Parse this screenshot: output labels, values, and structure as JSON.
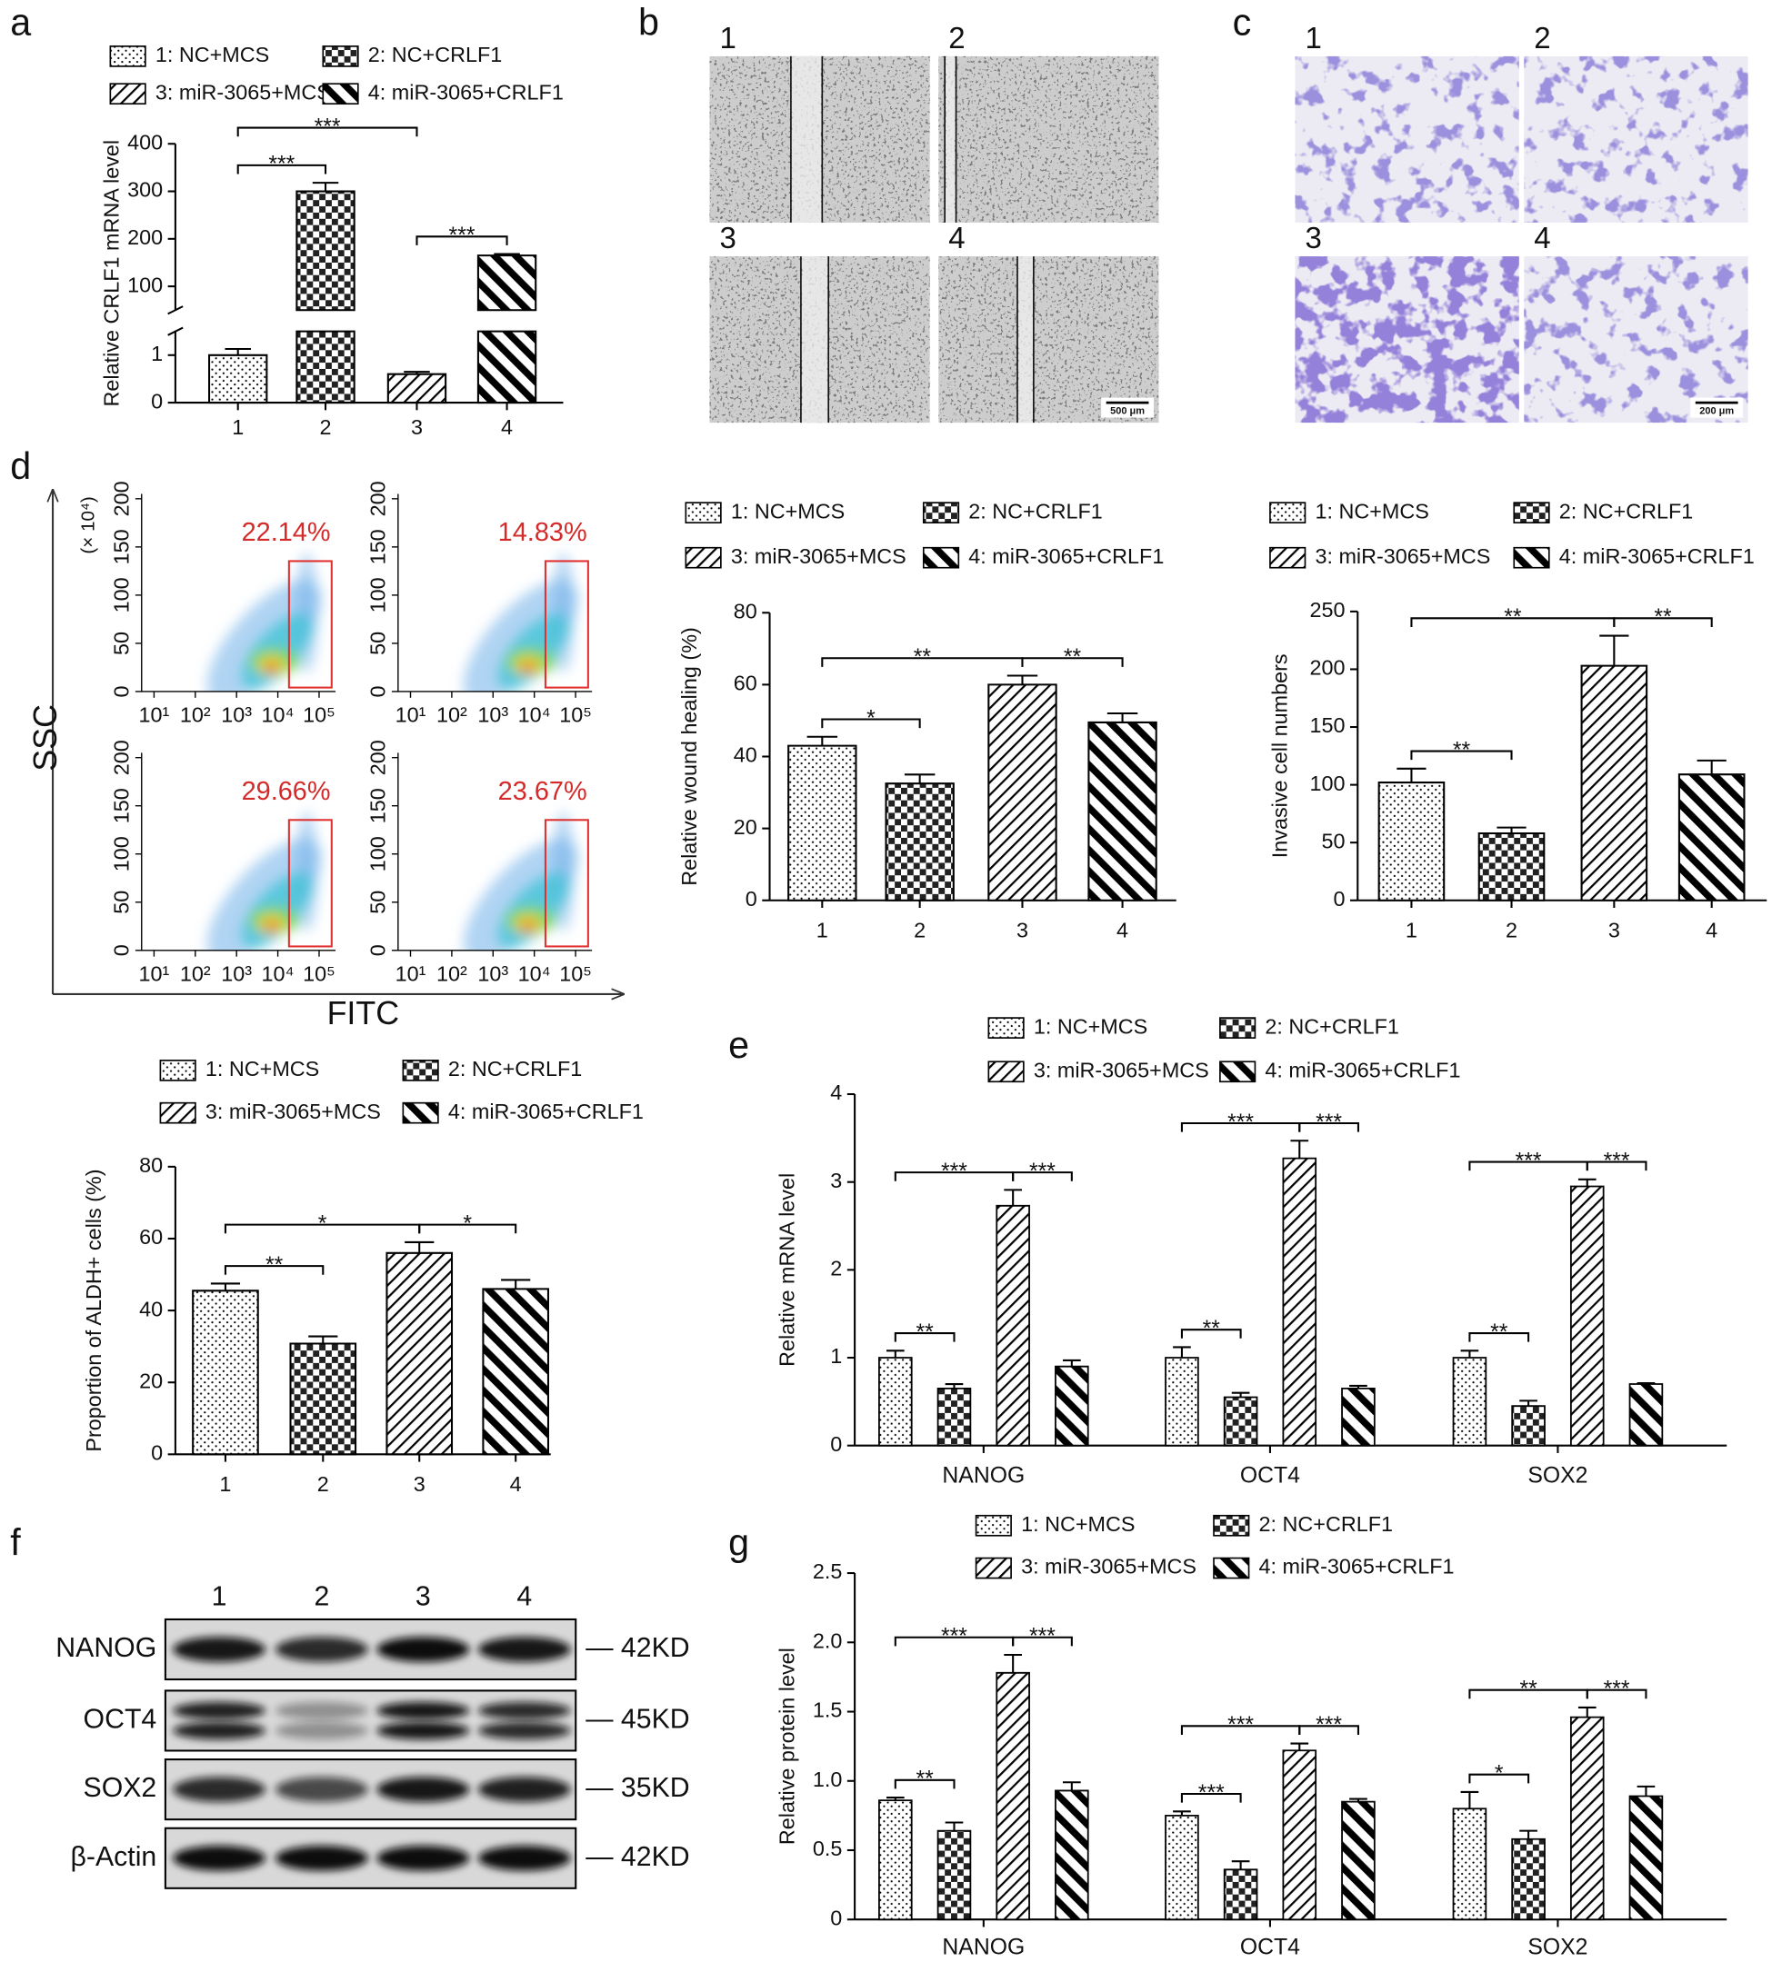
{
  "chart_data": [
    {
      "type": "bar",
      "panel": "a",
      "legend": [
        "1: NC+MCS",
        "2: NC+CRLF1",
        "3: miR-3065+MCS",
        "4: miR-3065+CRLF1"
      ],
      "patterns": [
        "dots",
        "checker",
        "hatch",
        "thick-hatch"
      ],
      "ylabel": "Relative CRLF1 mRNA level",
      "categories": [
        "1",
        "2",
        "3",
        "4"
      ],
      "values": [
        1,
        300,
        0.6,
        165
      ],
      "errors": [
        0.13,
        18,
        0.05,
        3
      ],
      "ylim": [
        0,
        400
      ],
      "axis_break": [
        1.5,
        50
      ],
      "yticks": [
        0,
        1,
        100,
        200,
        300,
        400
      ],
      "comparisons": [
        {
          "between": [
            "1",
            "2"
          ],
          "label": "***"
        },
        {
          "between": [
            "1",
            "3"
          ],
          "label": "***"
        },
        {
          "between": [
            "3",
            "4"
          ],
          "label": "***"
        }
      ]
    },
    {
      "type": "flow",
      "panel": "d",
      "xlabel": "FITC",
      "ylabel": "SSC",
      "y_unit": "(× 10⁴)",
      "xscale": "log",
      "xlim": [
        5,
        250000
      ],
      "xticks": [
        {
          "value": 10,
          "label": "10¹"
        },
        {
          "value": 100,
          "label": "10²"
        },
        {
          "value": 1000,
          "label": "10³"
        },
        {
          "value": 10000,
          "label": "10⁴"
        },
        {
          "value": 100000,
          "label": "10⁵"
        }
      ],
      "ylim": [
        0,
        205
      ],
      "yticks": [
        0,
        50,
        100,
        150,
        200
      ],
      "values": [
        22.14,
        14.83,
        29.66,
        23.67
      ],
      "value_labels": [
        "22.14%",
        "14.83%",
        "29.66%",
        "23.67%"
      ]
    },
    {
      "type": "bar",
      "legend": [
        "1: NC+MCS",
        "2: NC+CRLF1",
        "3: miR-3065+MCS",
        "4: miR-3065+CRLF1"
      ],
      "patterns": [
        "dots",
        "checker",
        "hatch",
        "thick-hatch"
      ],
      "ylabel": "Relative wound healing (%)",
      "categories": [
        "1",
        "2",
        "3",
        "4"
      ],
      "values": [
        43,
        32.5,
        60,
        49.5
      ],
      "errors": [
        2.5,
        2.5,
        2.5,
        2.5
      ],
      "ylim": [
        0,
        80
      ],
      "yticks": [
        0,
        20,
        40,
        60,
        80
      ],
      "comparisons": [
        {
          "between": [
            "1",
            "2"
          ],
          "label": "*"
        },
        {
          "between": [
            "1",
            "3"
          ],
          "label": "**"
        },
        {
          "between": [
            "3",
            "4"
          ],
          "label": "**"
        }
      ]
    },
    {
      "type": "bar",
      "legend": [
        "1: NC+MCS",
        "2: NC+CRLF1",
        "3: miR-3065+MCS",
        "4: miR-3065+CRLF1"
      ],
      "patterns": [
        "dots",
        "checker",
        "hatch",
        "thick-hatch"
      ],
      "ylabel": "Invasive cell numbers",
      "categories": [
        "1",
        "2",
        "3",
        "4"
      ],
      "values": [
        102,
        58,
        203,
        109
      ],
      "errors": [
        12,
        5,
        26,
        12
      ],
      "ylim": [
        0,
        250
      ],
      "yticks": [
        0,
        50,
        100,
        150,
        200,
        250
      ],
      "comparisons": [
        {
          "between": [
            "1",
            "2"
          ],
          "label": "**"
        },
        {
          "between": [
            "1",
            "3"
          ],
          "label": "**"
        },
        {
          "between": [
            "3",
            "4"
          ],
          "label": "**"
        }
      ]
    },
    {
      "type": "bar",
      "legend": [
        "1: NC+MCS",
        "2: NC+CRLF1",
        "3: miR-3065+MCS",
        "4: miR-3065+CRLF1"
      ],
      "patterns": [
        "dots",
        "checker",
        "hatch",
        "thick-hatch"
      ],
      "ylabel": "Proportion of ALDH+ cells (%)",
      "categories": [
        "1",
        "2",
        "3",
        "4"
      ],
      "values": [
        45.5,
        30.8,
        56,
        46
      ],
      "errors": [
        2,
        2,
        3,
        2.5
      ],
      "ylim": [
        0,
        80
      ],
      "yticks": [
        0,
        20,
        40,
        60,
        80
      ],
      "comparisons": [
        {
          "between": [
            "1",
            "2"
          ],
          "label": "**"
        },
        {
          "between": [
            "1",
            "3"
          ],
          "label": "*"
        },
        {
          "between": [
            "3",
            "4"
          ],
          "label": "*"
        }
      ]
    },
    {
      "type": "grouped_bar",
      "panel": "e",
      "ylabel": "Relative mRNA level",
      "categories": [
        "NANOG",
        "OCT4",
        "SOX2"
      ],
      "patterns": [
        "dots",
        "checker",
        "hatch",
        "thick-hatch"
      ],
      "series": [
        {
          "name": "1: NC+MCS",
          "values": [
            1,
            1,
            1
          ],
          "errors": [
            0.08,
            0.12,
            0.08
          ]
        },
        {
          "name": "2: NC+CRLF1",
          "values": [
            0.65,
            0.55,
            0.45
          ],
          "errors": [
            0.05,
            0.05,
            0.06
          ]
        },
        {
          "name": "3: miR-3065+MCS",
          "values": [
            2.73,
            3.27,
            2.95
          ],
          "errors": [
            0.18,
            0.2,
            0.08
          ]
        },
        {
          "name": "4: miR-3065+CRLF1",
          "values": [
            0.9,
            0.65,
            0.7
          ],
          "errors": [
            0.07,
            0.03,
            0.01
          ]
        }
      ],
      "ylim": [
        0,
        4
      ],
      "yticks": [
        0,
        1,
        2,
        3,
        4
      ],
      "comparisons": [
        {
          "category": "NANOG",
          "between": [
            0,
            1
          ],
          "label": "**"
        },
        {
          "category": "NANOG",
          "between": [
            0,
            2
          ],
          "label": "***"
        },
        {
          "category": "NANOG",
          "between": [
            2,
            3
          ],
          "label": "***"
        },
        {
          "category": "OCT4",
          "between": [
            0,
            1
          ],
          "label": "**"
        },
        {
          "category": "OCT4",
          "between": [
            0,
            2
          ],
          "label": "***"
        },
        {
          "category": "OCT4",
          "between": [
            2,
            3
          ],
          "label": "***"
        },
        {
          "category": "SOX2",
          "between": [
            0,
            1
          ],
          "label": "**"
        },
        {
          "category": "SOX2",
          "between": [
            0,
            2
          ],
          "label": "***"
        },
        {
          "category": "SOX2",
          "between": [
            2,
            3
          ],
          "label": "***"
        }
      ]
    },
    {
      "type": "grouped_bar",
      "panel": "g",
      "ylabel": "Relative protein level",
      "categories": [
        "NANOG",
        "OCT4",
        "SOX2"
      ],
      "patterns": [
        "dots",
        "checker",
        "hatch",
        "thick-hatch"
      ],
      "series": [
        {
          "name": "1: NC+MCS",
          "values": [
            0.86,
            0.75,
            0.8
          ],
          "errors": [
            0.02,
            0.03,
            0.12
          ]
        },
        {
          "name": "2: NC+CRLF1",
          "values": [
            0.64,
            0.36,
            0.58
          ],
          "errors": [
            0.06,
            0.06,
            0.06
          ]
        },
        {
          "name": "3: miR-3065+MCS",
          "values": [
            1.78,
            1.22,
            1.46
          ],
          "errors": [
            0.13,
            0.05,
            0.07
          ]
        },
        {
          "name": "4: miR-3065+CRLF1",
          "values": [
            0.93,
            0.85,
            0.89
          ],
          "errors": [
            0.06,
            0.02,
            0.07
          ]
        }
      ],
      "ylim": [
        0,
        2.5
      ],
      "yticks": [
        0,
        0.5,
        {
          "value": 1,
          "label": "1.0"
        },
        1.5,
        {
          "value": 2,
          "label": "2.0"
        },
        2.5
      ],
      "comparisons": [
        {
          "category": "NANOG",
          "between": [
            0,
            1
          ],
          "label": "**"
        },
        {
          "category": "NANOG",
          "between": [
            0,
            2
          ],
          "label": "***"
        },
        {
          "category": "NANOG",
          "between": [
            2,
            3
          ],
          "label": "***"
        },
        {
          "category": "OCT4",
          "between": [
            0,
            1
          ],
          "label": "***"
        },
        {
          "category": "OCT4",
          "between": [
            0,
            2
          ],
          "label": "***"
        },
        {
          "category": "OCT4",
          "between": [
            2,
            3
          ],
          "label": "***"
        },
        {
          "category": "SOX2",
          "between": [
            0,
            1
          ],
          "label": "*"
        },
        {
          "category": "SOX2",
          "between": [
            0,
            2
          ],
          "label": "**"
        },
        {
          "category": "SOX2",
          "between": [
            2,
            3
          ],
          "label": "***"
        }
      ]
    }
  ],
  "micrographs": [
    {
      "panel": "b",
      "tiles": [
        "1",
        "2",
        "3",
        "4"
      ],
      "scale_bar": "500 μm"
    },
    {
      "panel": "c",
      "tiles": [
        "1",
        "2",
        "3",
        "4"
      ],
      "scale_bar": "200 μm"
    }
  ],
  "western_blot": {
    "panel": "f",
    "lanes": [
      "1",
      "2",
      "3",
      "4"
    ],
    "rows": [
      {
        "name": "NANOG",
        "size": "— 42KD"
      },
      {
        "name": "OCT4",
        "size": "— 45KD"
      },
      {
        "name": "SOX2",
        "size": "— 35KD"
      },
      {
        "name": "β-Actin",
        "size": "— 42KD"
      }
    ]
  }
}
